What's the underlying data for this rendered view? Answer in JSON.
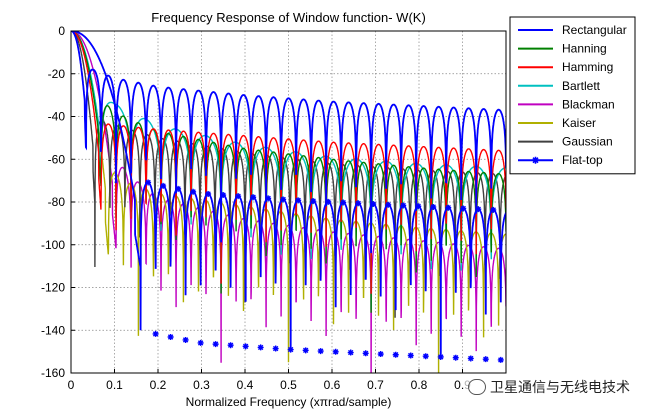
{
  "chart_data": {
    "type": "line",
    "title": "Frequency Response of Window function- W(K)",
    "xlabel": "Normalized Frequency (xπrad/sample)",
    "ylabel": "",
    "xlim": [
      0,
      1
    ],
    "ylim": [
      -160,
      0
    ],
    "grid": true,
    "legend_position": "top-right",
    "xticks": [
      0,
      0.1,
      0.2,
      0.3,
      0.4,
      0.5,
      0.6,
      0.7,
      0.8,
      0.9
    ],
    "xtick_labels": [
      "0",
      "0.1",
      "0.2",
      "0.3",
      "0.4",
      "0.5",
      "0.6",
      "0.7",
      "0.8",
      "0.9"
    ],
    "yticks": [
      0,
      -20,
      -40,
      -60,
      -80,
      -100,
      -120,
      -140,
      -160
    ],
    "ytick_labels": [
      "0",
      "-20",
      "-40",
      "-60",
      "-80",
      "-100",
      "-120",
      "-140",
      "-160"
    ],
    "series": [
      {
        "name": "Rectangular",
        "color": "#0000ff",
        "marker": "none",
        "sidelobe_period": 0.0345,
        "null_first": 0.0345,
        "envelope_x": [
          0.03,
          0.05,
          0.1,
          0.2,
          0.4,
          0.6,
          0.8,
          1.0
        ],
        "envelope_db": [
          -14,
          -18,
          -22,
          -26,
          -30,
          -33,
          -35,
          -37
        ]
      },
      {
        "name": "Hanning",
        "color": "#008000",
        "marker": "none",
        "sidelobe_period": 0.0345,
        "null_first": 0.069,
        "envelope_x": [
          0.07,
          0.1,
          0.2,
          0.4,
          0.6,
          0.8,
          1.0
        ],
        "envelope_db": [
          -32,
          -38,
          -47,
          -55,
          -60,
          -64,
          -67
        ]
      },
      {
        "name": "Hamming",
        "color": "#ff0000",
        "marker": "none",
        "sidelobe_period": 0.0345,
        "null_first": 0.069,
        "envelope_x": [
          0.07,
          0.1,
          0.2,
          0.4,
          0.6,
          0.8,
          1.0
        ],
        "envelope_db": [
          -43,
          -44,
          -46,
          -49,
          -52,
          -54,
          -56
        ]
      },
      {
        "name": "Bartlett",
        "color": "#00c0c0",
        "marker": "none",
        "sidelobe_period": 0.069,
        "null_first": 0.069,
        "envelope_x": [
          0.07,
          0.1,
          0.2,
          0.4,
          0.6,
          0.8,
          1.0
        ],
        "envelope_db": [
          -27,
          -34,
          -44,
          -53,
          -59,
          -62,
          -64
        ]
      },
      {
        "name": "Blackman",
        "color": "#c000c0",
        "marker": "none",
        "sidelobe_period": 0.0345,
        "null_first": 0.1035,
        "envelope_x": [
          0.1,
          0.15,
          0.2,
          0.4,
          0.6,
          0.8,
          1.0
        ],
        "envelope_db": [
          -60,
          -70,
          -78,
          -88,
          -94,
          -98,
          -102
        ]
      },
      {
        "name": "Kaiser",
        "color": "#b0b000",
        "marker": "none",
        "sidelobe_period": 0.0345,
        "null_first": 0.086,
        "envelope_x": [
          0.09,
          0.12,
          0.2,
          0.4,
          0.6,
          0.8,
          1.0
        ],
        "envelope_db": [
          -64,
          -70,
          -76,
          -82,
          -88,
          -92,
          -95
        ]
      },
      {
        "name": "Gaussian",
        "color": "#404040",
        "marker": "none",
        "sidelobe_period": 0.0345,
        "null_first": 0.055,
        "envelope_x": [
          0.05,
          0.1,
          0.2,
          0.4,
          0.6,
          0.8,
          1.0
        ],
        "envelope_db": [
          -40,
          -44,
          -50,
          -57,
          -62,
          -65,
          -67
        ]
      },
      {
        "name": "Flat-top",
        "color": "#0000ff",
        "marker": "*",
        "sidelobe_period": 0.0345,
        "null_first": 0.16,
        "envelope_x": [
          0.16,
          0.2,
          0.3,
          0.5,
          0.7,
          0.9,
          1.0
        ],
        "envelope_db": [
          -70,
          -72,
          -76,
          -79,
          -81,
          -83,
          -84
        ]
      }
    ]
  },
  "watermark": {
    "text": "卫星通信与无线电技术",
    "icon": "wechat-icon"
  }
}
